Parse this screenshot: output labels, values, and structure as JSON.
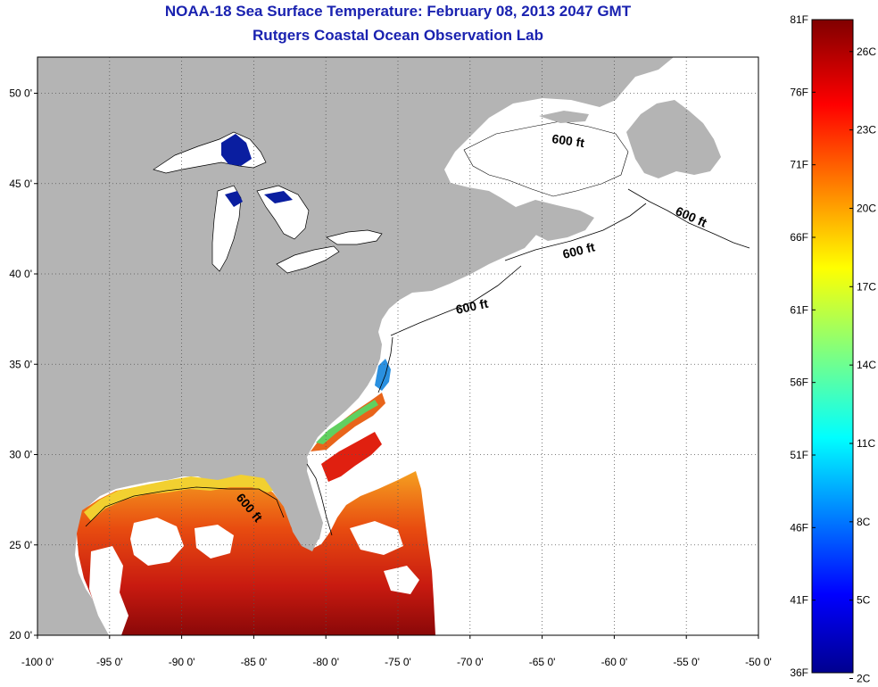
{
  "title": "NOAA-18 Sea Surface Temperature:  February 08, 2013 2047 GMT",
  "subtitle": "Rutgers Coastal Ocean Observation Lab",
  "map": {
    "lon_range": [
      -100,
      -50
    ],
    "lat_range": [
      20,
      52
    ],
    "lon_ticks": [
      {
        "value": -100,
        "label": "-100 0'"
      },
      {
        "value": -95,
        "label": "-95 0'"
      },
      {
        "value": -90,
        "label": "-90 0'"
      },
      {
        "value": -85,
        "label": "-85 0'"
      },
      {
        "value": -80,
        "label": "-80 0'"
      },
      {
        "value": -75,
        "label": "-75 0'"
      },
      {
        "value": -70,
        "label": "-70 0'"
      },
      {
        "value": -65,
        "label": "-65 0'"
      },
      {
        "value": -60,
        "label": "-60 0'"
      },
      {
        "value": -55,
        "label": "-55 0'"
      },
      {
        "value": -50,
        "label": "-50 0'"
      }
    ],
    "lat_ticks": [
      {
        "value": 20,
        "label": "20 0'"
      },
      {
        "value": 25,
        "label": "25 0'"
      },
      {
        "value": 30,
        "label": "30 0'"
      },
      {
        "value": 35,
        "label": "35 0'"
      },
      {
        "value": 40,
        "label": "40 0'"
      },
      {
        "value": 45,
        "label": "45 0'"
      },
      {
        "value": 50,
        "label": "50 0'"
      }
    ],
    "contour_labels": [
      "600 ft",
      "600 ft",
      "600 ft",
      "600 ft",
      "600 ft"
    ],
    "grid": "dotted"
  },
  "colorbar": {
    "min_f": 36,
    "max_f": 81,
    "fahrenheit_labels": [
      "81F",
      "76F",
      "71F",
      "66F",
      "61F",
      "56F",
      "51F",
      "46F",
      "41F",
      "36F"
    ],
    "celsius_labels": [
      "26C",
      "23C",
      "20C",
      "17C",
      "14C",
      "11C",
      "8C",
      "5C",
      "2C"
    ],
    "colormap": "jet"
  },
  "colors": {
    "title": "#1a22b0",
    "land": "#b4b4b4",
    "ocean_no_data": "#ffffff",
    "great_lakes_cold": "#0a1ea0"
  }
}
